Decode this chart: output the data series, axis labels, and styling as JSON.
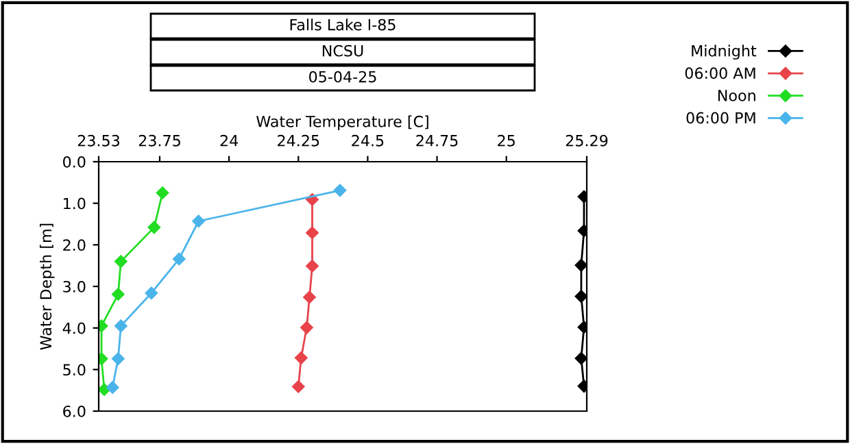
{
  "chart_data": {
    "type": "line",
    "title": "Falls Lake I-85",
    "subtitle": "NCSU",
    "annotations": [
      "05-04-25"
    ],
    "xlabel": "Water Temperature [C]",
    "ylabel": "Water Depth [m]",
    "xlim": [
      23.53,
      25.29
    ],
    "xticks": [
      23.53,
      23.75,
      24,
      24.25,
      24.5,
      24.75,
      25,
      25.29
    ],
    "ylim": [
      6.0,
      0.0
    ],
    "yticks": [
      {
        "value": 0,
        "label": "0.0"
      },
      {
        "value": 1,
        "label": "1.0"
      },
      {
        "value": 2,
        "label": "2.0"
      },
      {
        "value": 3,
        "label": "3.0"
      },
      {
        "value": 4,
        "label": "4.0"
      },
      {
        "value": 5,
        "label": "5.0"
      },
      {
        "value": 6,
        "label": "6.0"
      }
    ],
    "grid": false,
    "legend": "top right",
    "marker": "diamond",
    "line_style": "solid",
    "series": [
      {
        "name": "Midnight",
        "color": "#000000",
        "x": [
          25.28,
          25.28,
          25.27,
          25.27,
          25.28,
          25.27,
          25.28
        ],
        "values": [
          0.84,
          1.66,
          2.49,
          3.24,
          3.98,
          4.73,
          5.4
        ]
      },
      {
        "name": "06:00 AM",
        "color": "#e8434a",
        "x": [
          24.3,
          24.3,
          24.3,
          24.29,
          24.28,
          24.26,
          24.25
        ],
        "values": [
          0.91,
          1.71,
          2.51,
          3.26,
          3.99,
          4.72,
          5.41
        ]
      },
      {
        "name": "Noon",
        "color": "#22dd22",
        "x": [
          23.76,
          23.73,
          23.61,
          23.6,
          23.54,
          23.54,
          23.55
        ],
        "values": [
          0.75,
          1.58,
          2.4,
          3.19,
          3.95,
          4.74,
          5.48
        ]
      },
      {
        "name": "06:00 PM",
        "color": "#4ab4ea",
        "x": [
          24.4,
          23.89,
          23.82,
          23.72,
          23.61,
          23.6,
          23.58
        ],
        "values": [
          0.69,
          1.43,
          2.34,
          3.16,
          3.95,
          4.74,
          5.43
        ]
      }
    ]
  }
}
